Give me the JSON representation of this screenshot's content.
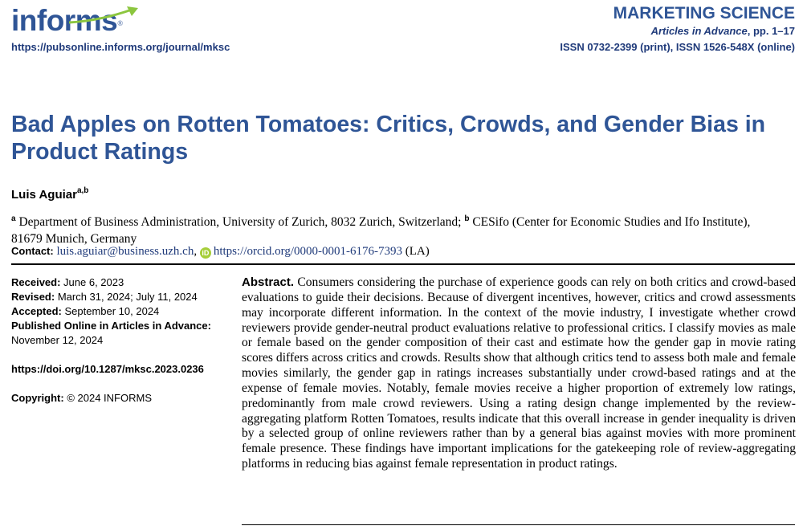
{
  "header": {
    "logo_text": "informs",
    "journal_url": "https://pubsonline.informs.org/journal/mksc",
    "journal_name": "MARKETING SCIENCE",
    "articles_label": "Articles in Advance",
    "pages": ", pp. 1–17",
    "issn": "ISSN 0732-2399 (print), ISSN 1526-548X (online)"
  },
  "article": {
    "title": "Bad Apples on Rotten Tomatoes: Critics, Crowds, and Gender Bias in Product Ratings",
    "author": "Luis Aguiar",
    "author_sup": "a,b",
    "affil_a_sup": "a",
    "affil_a": " Department of Business Administration, University of Zurich, 8032 Zurich, Switzerland; ",
    "affil_b_sup": "b",
    "affil_b": " CESifo (Center for Economic Studies and Ifo Institute), 81679 Munich, Germany",
    "contact_label": "Contact:",
    "contact_email": "luis.aguiar@business.uzh.ch",
    "orcid_icon_text": "iD",
    "orcid_url": "https://orcid.org/0000-0001-6176-7393",
    "contact_suffix": " (LA)"
  },
  "meta": {
    "received_label": "Received:",
    "received": " June 6, 2023",
    "revised_label": "Revised:",
    "revised": " March 31, 2024; July 11, 2024",
    "accepted_label": "Accepted:",
    "accepted": " September 10, 2024",
    "published_label": "Published Online in Articles in Advance:",
    "published": "November 12, 2024",
    "doi": "https://doi.org/10.1287/mksc.2023.0236",
    "copyright_label": "Copyright:",
    "copyright": " © 2024 INFORMS"
  },
  "abstract": {
    "label": "Abstract.",
    "text": " Consumers considering the purchase of experience goods can rely on both critics and crowd-based evaluations to guide their decisions. Because of divergent incentives, however, critics and crowd assessments may incorporate different information. In the context of the movie industry, I investigate whether crowd reviewers provide gender-neutral product evaluations relative to professional critics. I classify movies as male or female based on the gender composition of their cast and estimate how the gender gap in movie rating scores differs across critics and crowds. Results show that although critics tend to assess both male and female movies similarly, the gender gap in ratings increases substantially under crowd-based ratings and at the expense of female movies. Notably, female movies receive a higher proportion of extremely low ratings, predominantly from male crowd reviewers. Using a rating design change implemented by the review-aggregating platform Rotten Tomatoes, results indicate that this overall increase in gender inequality is driven by a selected group of online reviewers rather than by a general bias against movies with more prominent female presence. These findings have important implications for the gatekeeping role of review-aggregating platforms in reducing bias against female representation in product ratings."
  }
}
